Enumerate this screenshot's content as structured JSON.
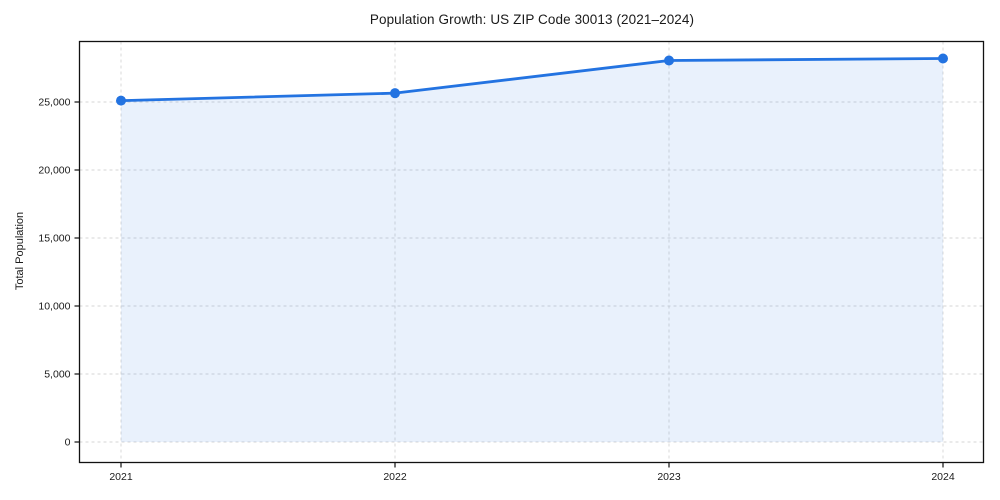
{
  "chart_data": {
    "type": "area",
    "title": "Population Growth: US ZIP Code 30013 (2021–2024)",
    "xlabel": "",
    "ylabel": "Total Population",
    "categories": [
      "2021",
      "2022",
      "2023",
      "2024"
    ],
    "values": [
      25100,
      25650,
      28050,
      28200
    ],
    "yticks": {
      "values": [
        0,
        5000,
        10000,
        15000,
        20000,
        25000
      ],
      "labels": [
        "0",
        "5,000",
        "10,000",
        "15,000",
        "20,000",
        "25,000"
      ]
    },
    "ylim": [
      -1500,
      29500
    ],
    "grid": "dashed, both axes",
    "legend": "none",
    "marker": "circle",
    "colors": {
      "line": "#2373e1",
      "marker": "#2373e1",
      "area_fill": "rgba(35,115,225,0.10)",
      "grid": "#d6d6d6",
      "spine": "#111111",
      "text": "#1a1a1a",
      "background": "#ffffff"
    }
  }
}
